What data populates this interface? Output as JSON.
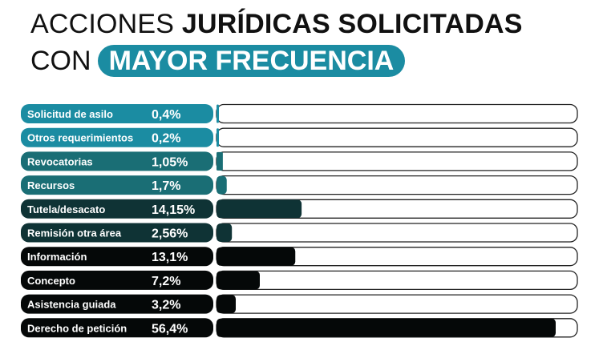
{
  "title": {
    "part1": "ACCIONES ",
    "part2": "JURÍDICAS SOLICITADAS",
    "part3": "CON",
    "highlight": "MAYOR FRECUENCIA"
  },
  "colors": {
    "teal": "#1b8ca2",
    "teal_dark": "#1a6e75",
    "dark": "#0f3335",
    "black": "#050808"
  },
  "chart_data": {
    "type": "bar",
    "orientation": "horizontal",
    "xlim": [
      0,
      60
    ],
    "categories": [
      "Solicitud de asilo",
      "Otros requerimientos",
      "Revocatorias",
      "Recursos",
      "Tutela/desacato",
      "Remisión otra área",
      "Información",
      "Concepto",
      "Asistencia guiada",
      "Derecho de petición"
    ],
    "values": [
      0.4,
      0.2,
      1.05,
      1.7,
      14.15,
      2.56,
      13.1,
      7.2,
      3.2,
      56.4
    ],
    "labels": [
      "0,4%",
      "0,2%",
      "1,05%",
      "1,7%",
      "14,15%",
      "2,56%",
      "13,1%",
      "7,2%",
      "3,2%",
      "56,4%"
    ]
  }
}
